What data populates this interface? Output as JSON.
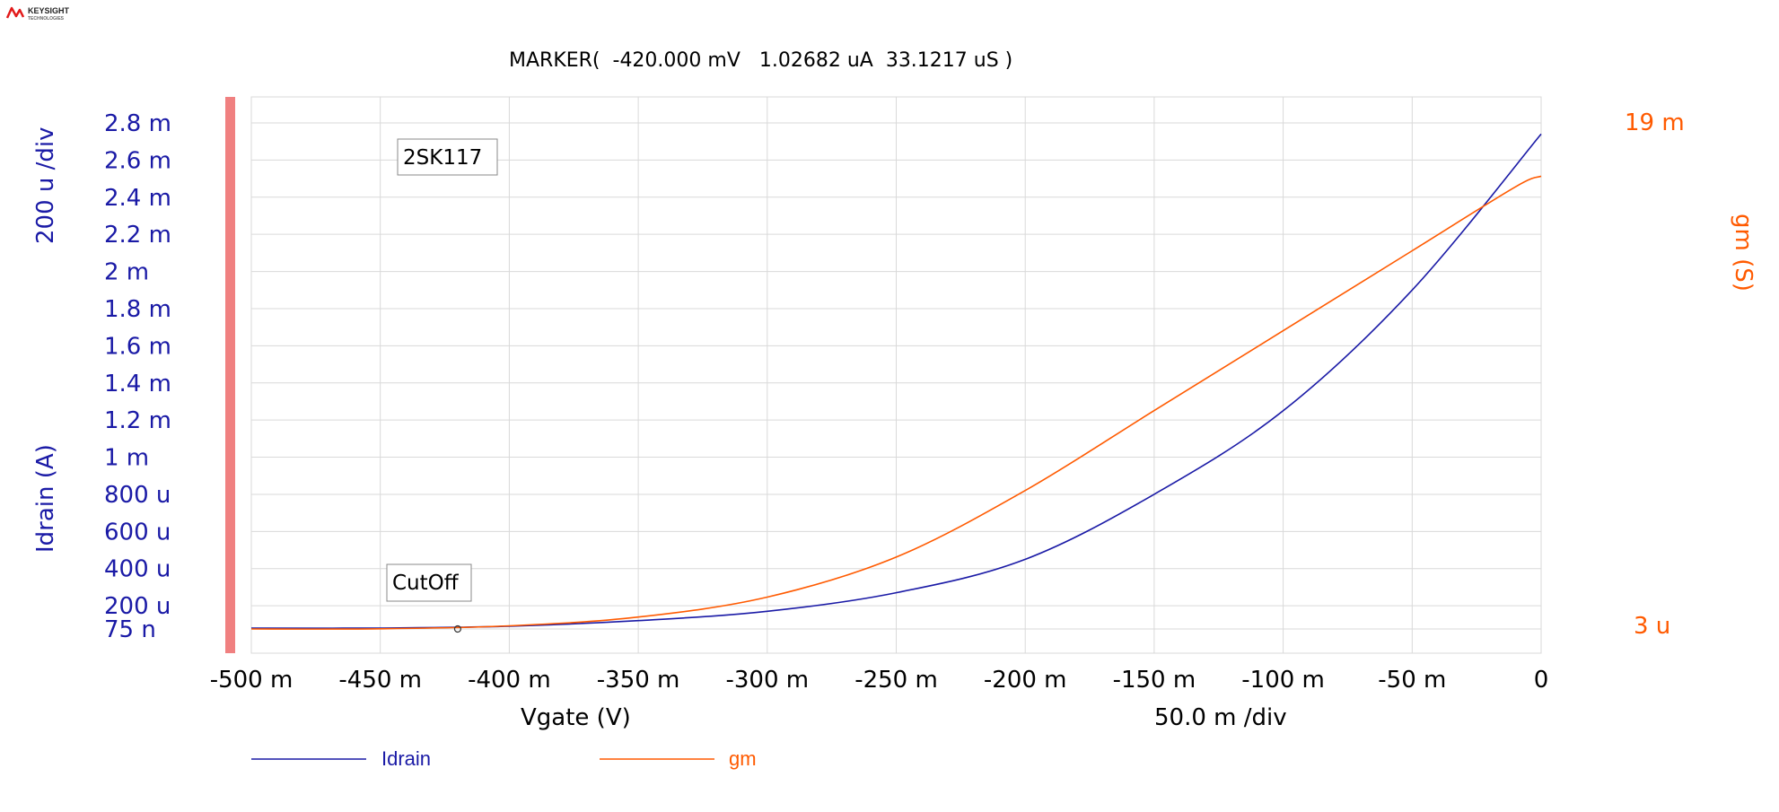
{
  "logo": {
    "brand": "KEYSIGHT",
    "sub": "TECHNOLOGIES"
  },
  "marker_readout": "MARKER(  -420.000 mV   1.02682 uA  33.1217 uS )",
  "colors": {
    "idrain": "#1a1aa6",
    "gm": "#ff5a00",
    "grid": "#d9d9d9",
    "axis_bar": "#f08080",
    "text": "#000000"
  },
  "chart_data": {
    "type": "line",
    "xlabel": "Vgate (V)",
    "x_div_label": "50.0 m /div",
    "x_range": [
      -0.5,
      0.0
    ],
    "x_ticks": [
      {
        "v": -0.5,
        "label": "-500 m"
      },
      {
        "v": -0.45,
        "label": "-450 m"
      },
      {
        "v": -0.4,
        "label": "-400 m"
      },
      {
        "v": -0.35,
        "label": "-350 m"
      },
      {
        "v": -0.3,
        "label": "-300 m"
      },
      {
        "v": -0.25,
        "label": "-250 m"
      },
      {
        "v": -0.2,
        "label": "-200 m"
      },
      {
        "v": -0.15,
        "label": "-150 m"
      },
      {
        "v": -0.1,
        "label": "-100 m"
      },
      {
        "v": -0.05,
        "label": "-50 m"
      },
      {
        "v": 0.0,
        "label": "0"
      }
    ],
    "y_left": {
      "label": "Idrain (A)",
      "div_label": "200 u /div",
      "range": [
        7.5e-05,
        0.0028
      ],
      "ticks": [
        {
          "v": 0.0028,
          "label": "2.8 m"
        },
        {
          "v": 0.0026,
          "label": "2.6 m"
        },
        {
          "v": 0.0024,
          "label": "2.4 m"
        },
        {
          "v": 0.0022,
          "label": "2.2 m"
        },
        {
          "v": 0.002,
          "label": "2 m"
        },
        {
          "v": 0.0018,
          "label": "1.8 m"
        },
        {
          "v": 0.0016,
          "label": "1.6 m"
        },
        {
          "v": 0.0014,
          "label": "1.4 m"
        },
        {
          "v": 0.0012,
          "label": "1.2 m"
        },
        {
          "v": 0.001,
          "label": "1 m"
        },
        {
          "v": 0.0008,
          "label": "800 u"
        },
        {
          "v": 0.0006,
          "label": "600 u"
        },
        {
          "v": 0.0004,
          "label": "400 u"
        },
        {
          "v": 0.0002,
          "label": "200 u"
        },
        {
          "v": 7.5e-05,
          "label": "75 n"
        }
      ]
    },
    "y_right": {
      "label": "gm (S)",
      "range": [
        3e-06,
        0.019
      ],
      "top_label": "19 m",
      "bottom_label": "3 u"
    },
    "series": [
      {
        "name": "Idrain",
        "axis": "left",
        "x": [
          -0.5,
          -0.45,
          -0.4,
          -0.35,
          -0.3,
          -0.25,
          -0.2,
          -0.15,
          -0.1,
          -0.05,
          0.0
        ],
        "y": [
          8e-05,
          8e-05,
          9e-05,
          0.00012,
          0.00017,
          0.00027,
          0.00045,
          0.0008,
          0.00125,
          0.0019,
          0.00274
        ]
      },
      {
        "name": "gm",
        "axis": "right",
        "x": [
          -0.5,
          -0.45,
          -0.4,
          -0.35,
          -0.3,
          -0.25,
          -0.2,
          -0.15,
          -0.1,
          -0.05,
          -0.01,
          0.0
        ],
        "y": [
          3e-06,
          1e-05,
          0.00012,
          0.00045,
          0.0012,
          0.0027,
          0.0052,
          0.0082,
          0.0112,
          0.0142,
          0.0166,
          0.017
        ]
      }
    ],
    "marker": {
      "x": -0.42,
      "y": 1.02682e-06,
      "axis": "left"
    },
    "annotations": [
      {
        "text": "2SK117",
        "at": [
          -0.44,
          0.0026
        ]
      },
      {
        "text": "CutOff",
        "at": [
          -0.44,
          0.00033
        ]
      }
    ],
    "legend_position": "bottom-left"
  }
}
